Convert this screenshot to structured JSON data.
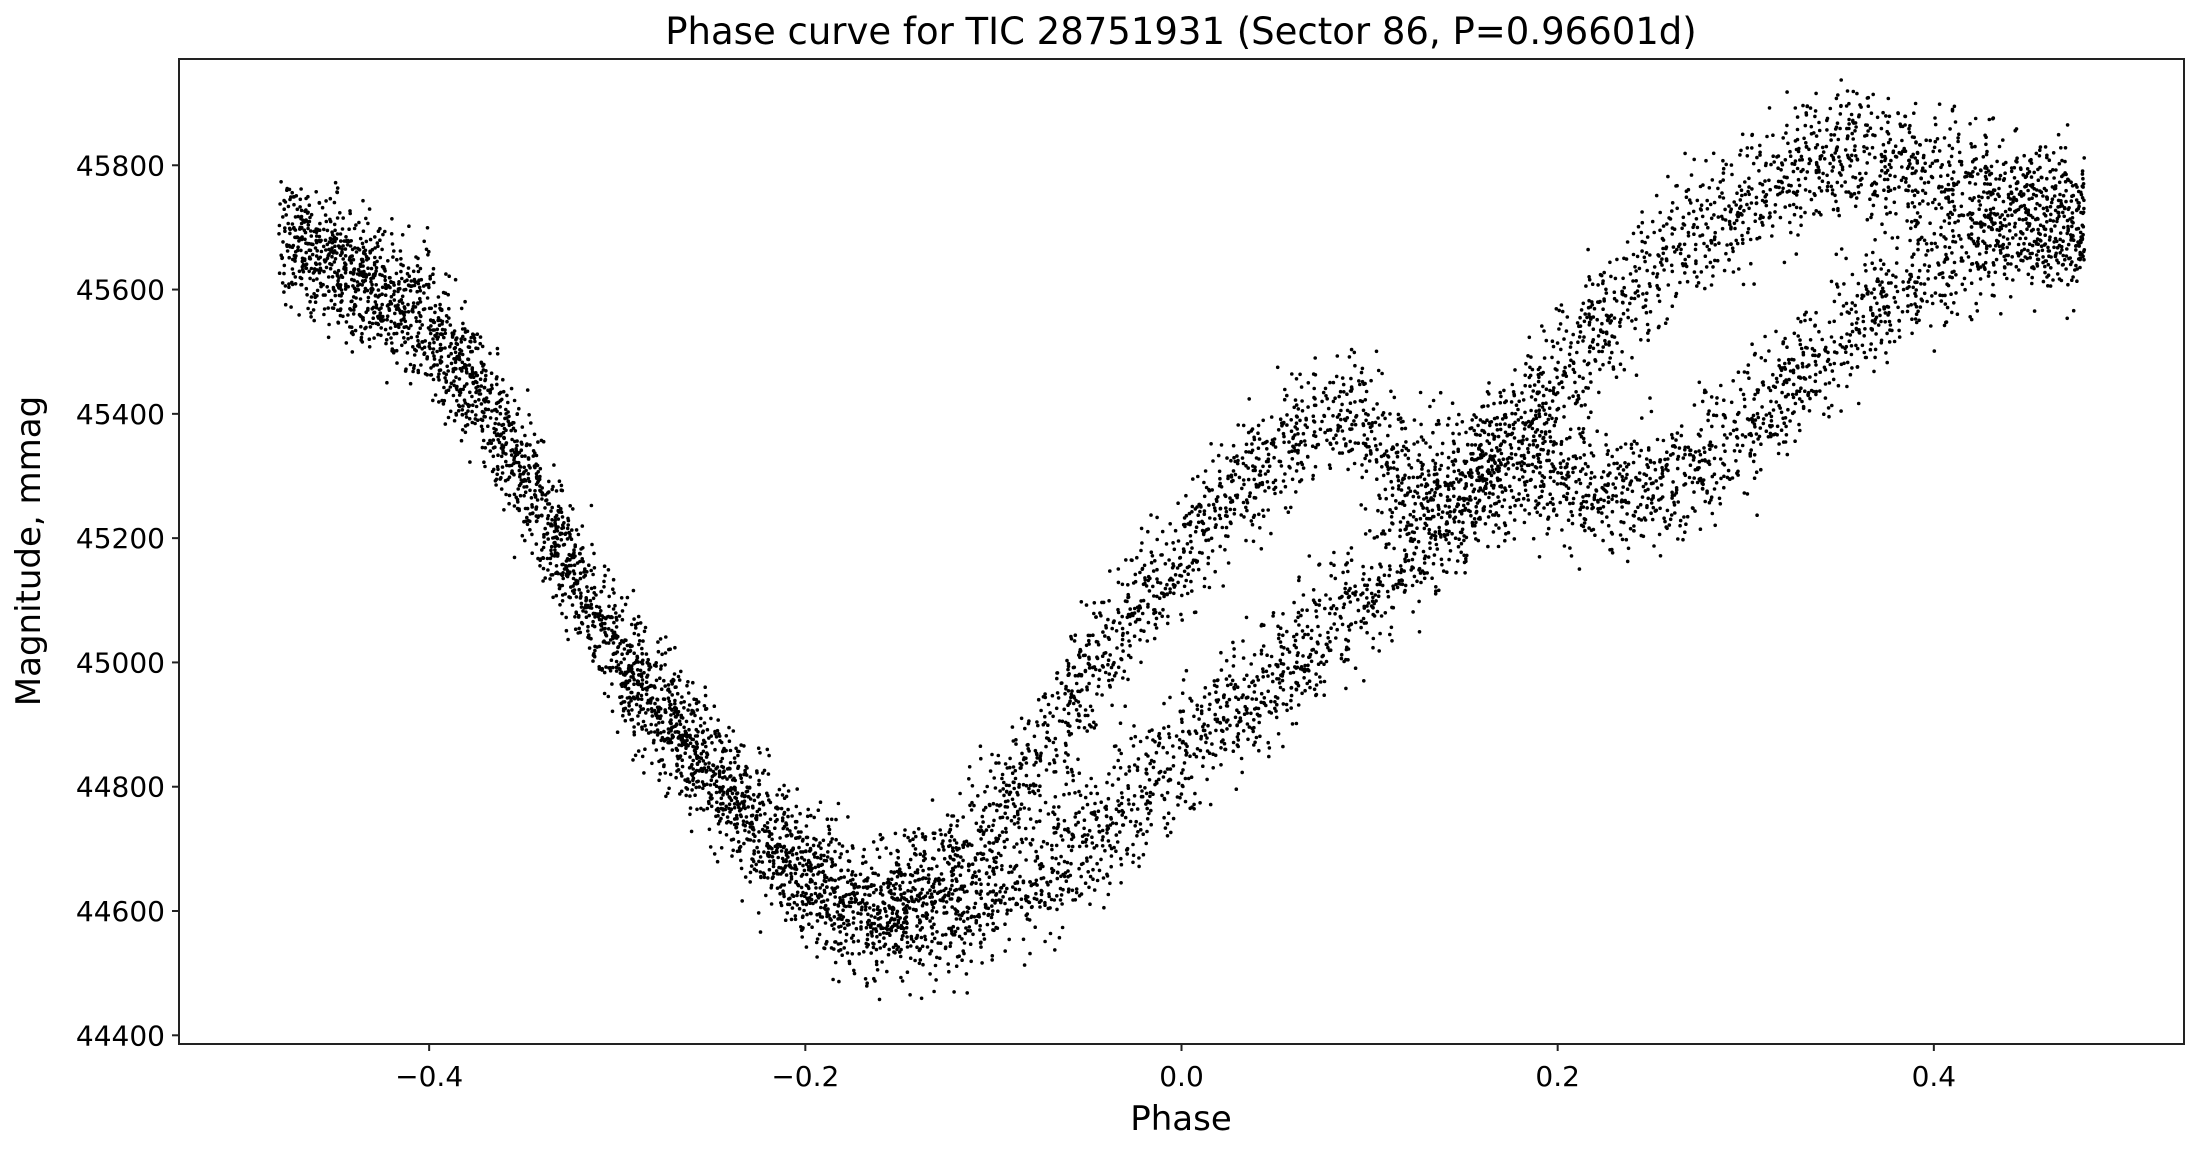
{
  "chart_data": {
    "type": "scatter",
    "title": "Phase curve for TIC 28751931 (Sector 86, P=0.96601d)",
    "xlabel": "Phase",
    "ylabel": "Magnitude, mmag",
    "xlim": [
      -0.533,
      0.533
    ],
    "ylim": [
      44386,
      45971
    ],
    "xticks": [
      -0.4,
      -0.2,
      0.0,
      0.2,
      0.4
    ],
    "xtick_labels": [
      "−0.4",
      "−0.2",
      "0.0",
      "0.2",
      "0.4"
    ],
    "yticks": [
      44400,
      44600,
      44800,
      45000,
      45200,
      45400,
      45600,
      45800
    ],
    "ytick_labels": [
      "44400",
      "44600",
      "44800",
      "45000",
      "45200",
      "45400",
      "45600",
      "45800"
    ],
    "grid": false,
    "legend": "none",
    "marker_color": "#000000",
    "approx_point_count": 9000,
    "point_scatter_mmag": 70,
    "trend_branches": [
      {
        "name": "descending",
        "phase": [
          -0.48,
          -0.45,
          -0.42,
          -0.4,
          -0.37,
          -0.35,
          -0.32,
          -0.3,
          -0.27,
          -0.25,
          -0.22,
          -0.2,
          -0.17,
          -0.15
        ],
        "mag": [
          45690,
          45640,
          45590,
          45540,
          45420,
          45300,
          45130,
          45010,
          44900,
          44820,
          44720,
          44650,
          44610,
          44600
        ]
      },
      {
        "name": "upper-rising",
        "phase": [
          -0.15,
          -0.12,
          -0.1,
          -0.07,
          -0.05,
          -0.02,
          0.0,
          0.03,
          0.06,
          0.09,
          0.12,
          0.15,
          0.18,
          0.2,
          0.23,
          0.26,
          0.3,
          0.33,
          0.36,
          0.4,
          0.44,
          0.48
        ],
        "mag": [
          44610,
          44680,
          44760,
          44880,
          44980,
          45100,
          45180,
          45280,
          45360,
          45400,
          45300,
          45300,
          45380,
          45460,
          45560,
          45660,
          45740,
          45800,
          45820,
          45790,
          45740,
          45700
        ]
      },
      {
        "name": "lower-rising",
        "phase": [
          -0.15,
          -0.12,
          -0.1,
          -0.07,
          -0.05,
          -0.02,
          0.0,
          0.03,
          0.06,
          0.09,
          0.12,
          0.15,
          0.18,
          0.2,
          0.23,
          0.26,
          0.3,
          0.33,
          0.36,
          0.4,
          0.44,
          0.48
        ],
        "mag": [
          44600,
          44600,
          44620,
          44670,
          44720,
          44790,
          44850,
          44930,
          45000,
          45080,
          45170,
          45250,
          45320,
          45310,
          45270,
          45290,
          45370,
          45470,
          45550,
          45630,
          45690,
          45700
        ]
      }
    ]
  }
}
